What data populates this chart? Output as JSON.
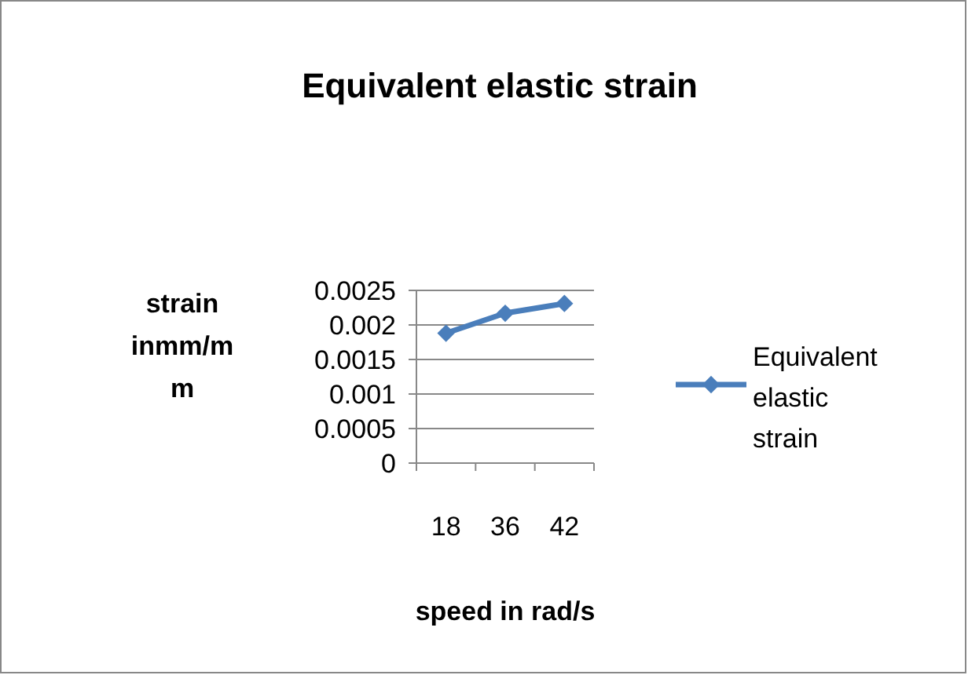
{
  "chart_data": {
    "type": "line",
    "title": "Equivalent elastic strain",
    "xlabel": "speed in rad/s",
    "ylabel": "strain inmm/mm",
    "categories": [
      "18",
      "36",
      "42"
    ],
    "series": [
      {
        "name": "Equivalent elastic strain",
        "color": "#4a7ebb",
        "values": [
          0.00188,
          0.00217,
          0.00231
        ]
      }
    ],
    "ylim": [
      0,
      0.0025
    ],
    "yticks": [
      0,
      0.0005,
      0.001,
      0.0015,
      0.002,
      0.0025
    ],
    "grid": "y",
    "legend": "right",
    "marker": "diamond",
    "line_style": "solid"
  }
}
